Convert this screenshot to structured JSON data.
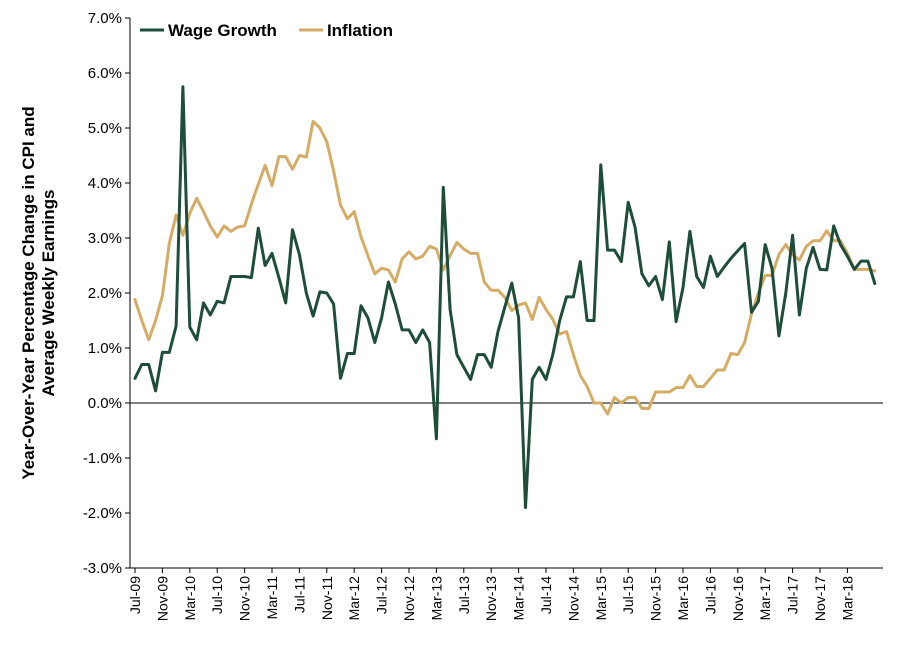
{
  "chart_data": {
    "type": "line",
    "title": "",
    "xlabel": "",
    "ylabel": "Year-Over-Year Percentage Change in CPI and Average Weekly Earnings",
    "ylabel_lines": [
      "Year-Over-Year Percentage Change in CPI and",
      "Average Weekly Earnings"
    ],
    "ylim": [
      -3.0,
      7.0
    ],
    "yticks": [
      "-3.0%",
      "-2.0%",
      "-1.0%",
      "0.0%",
      "1.0%",
      "2.0%",
      "3.0%",
      "4.0%",
      "5.0%",
      "6.0%",
      "7.0%"
    ],
    "x_start": "Jul-09",
    "x_tick_labels": [
      "Jul-09",
      "Nov-09",
      "Mar-10",
      "Jul-10",
      "Nov-10",
      "Mar-11",
      "Jul-11",
      "Nov-11",
      "Mar-12",
      "Jul-12",
      "Nov-12",
      "Mar-13",
      "Jul-13",
      "Nov-13",
      "Mar-14",
      "Jul-14",
      "Nov-14",
      "Mar-15",
      "Jul-15",
      "Nov-15",
      "Mar-16",
      "Jul-16",
      "Nov-16",
      "Mar-17",
      "Jul-17",
      "Nov-17",
      "Mar-18"
    ],
    "legend_position": "top-left",
    "grid": false,
    "series": [
      {
        "name": "Wage Growth",
        "color": "#1e4d3a",
        "values": [
          0.45,
          0.7,
          0.7,
          0.22,
          0.92,
          0.92,
          1.4,
          5.75,
          1.38,
          1.15,
          1.82,
          1.6,
          1.85,
          1.82,
          2.3,
          2.3,
          2.3,
          2.28,
          3.18,
          2.5,
          2.72,
          2.28,
          1.82,
          3.15,
          2.7,
          2.0,
          1.58,
          2.02,
          2.0,
          1.8,
          0.45,
          0.9,
          0.9,
          1.77,
          1.55,
          1.1,
          1.55,
          2.2,
          1.8,
          1.33,
          1.33,
          1.1,
          1.33,
          1.1,
          -0.65,
          3.92,
          1.7,
          0.88,
          0.65,
          0.43,
          0.88,
          0.88,
          0.65,
          1.3,
          1.75,
          2.18,
          1.55,
          -1.9,
          0.43,
          0.65,
          0.43,
          0.88,
          1.5,
          1.93,
          1.93,
          2.57,
          1.5,
          1.5,
          4.33,
          2.78,
          2.78,
          2.57,
          3.65,
          3.2,
          2.35,
          2.13,
          2.3,
          1.88,
          2.93,
          1.48,
          2.1,
          3.12,
          2.3,
          2.1,
          2.67,
          2.3,
          2.47,
          2.63,
          2.77,
          2.9,
          1.65,
          1.85,
          2.88,
          2.45,
          1.22,
          2.0,
          3.05,
          1.6,
          2.45,
          2.83,
          2.43,
          2.42,
          3.22,
          2.88,
          2.67,
          2.43,
          2.58,
          2.58,
          2.17
        ]
      },
      {
        "name": "Inflation",
        "color": "#d4ac66",
        "values": [
          1.88,
          1.5,
          1.15,
          1.5,
          1.95,
          2.9,
          3.42,
          3.05,
          3.45,
          3.72,
          3.48,
          3.22,
          3.02,
          3.22,
          3.12,
          3.2,
          3.22,
          3.62,
          3.98,
          4.32,
          3.95,
          4.48,
          4.48,
          4.25,
          4.5,
          4.47,
          5.12,
          5.0,
          4.75,
          4.22,
          3.6,
          3.35,
          3.48,
          3.02,
          2.68,
          2.35,
          2.45,
          2.42,
          2.2,
          2.62,
          2.75,
          2.62,
          2.67,
          2.85,
          2.8,
          2.42,
          2.68,
          2.92,
          2.8,
          2.72,
          2.72,
          2.2,
          2.05,
          2.05,
          1.92,
          1.68,
          1.78,
          1.82,
          1.52,
          1.92,
          1.7,
          1.52,
          1.25,
          1.3,
          0.88,
          0.5,
          0.3,
          0.0,
          0.0,
          -0.2,
          0.1,
          0.0,
          0.1,
          0.1,
          -0.1,
          -0.1,
          0.2,
          0.2,
          0.2,
          0.28,
          0.28,
          0.5,
          0.3,
          0.3,
          0.45,
          0.6,
          0.6,
          0.9,
          0.88,
          1.1,
          1.62,
          2.0,
          2.32,
          2.32,
          2.7,
          2.88,
          2.7,
          2.6,
          2.85,
          2.95,
          2.95,
          3.13,
          2.95,
          2.95,
          2.72,
          2.43,
          2.43,
          2.43,
          2.4
        ]
      }
    ]
  }
}
